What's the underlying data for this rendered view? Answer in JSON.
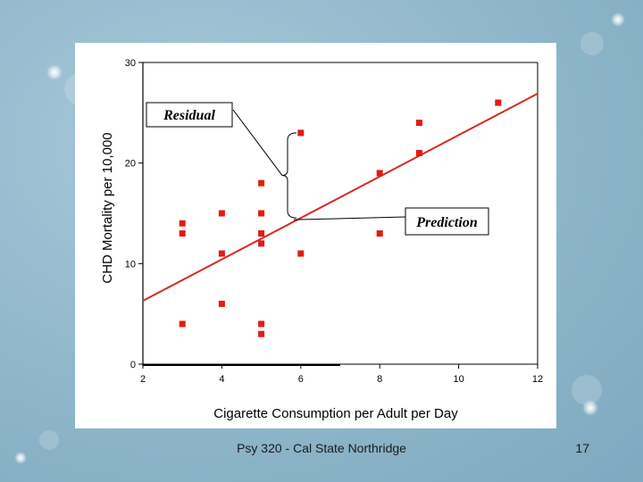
{
  "chart_data": {
    "type": "scatter",
    "title": "",
    "xlabel": "Cigarette Consumption per Adult per Day",
    "ylabel": "CHD Mortality per 10,000",
    "xlim": [
      2,
      12
    ],
    "ylim": [
      0,
      30
    ],
    "x_ticks": [
      2,
      4,
      6,
      8,
      10,
      12
    ],
    "y_ticks": [
      0,
      10,
      20,
      30
    ],
    "x_tick_labels": [
      "2",
      "4",
      "6",
      "8",
      "10",
      "12"
    ],
    "y_tick_labels": [
      "0",
      "10",
      "20",
      "30"
    ],
    "points": [
      {
        "x": 11,
        "y": 26
      },
      {
        "x": 9,
        "y": 24
      },
      {
        "x": 6,
        "y": 23
      },
      {
        "x": 9,
        "y": 21
      },
      {
        "x": 8,
        "y": 19
      },
      {
        "x": 5,
        "y": 18
      },
      {
        "x": 3,
        "y": 14
      },
      {
        "x": 4,
        "y": 15
      },
      {
        "x": 5,
        "y": 15
      },
      {
        "x": 3,
        "y": 13
      },
      {
        "x": 5,
        "y": 13
      },
      {
        "x": 8,
        "y": 13
      },
      {
        "x": 5,
        "y": 12
      },
      {
        "x": 4,
        "y": 11
      },
      {
        "x": 6,
        "y": 11
      },
      {
        "x": 4,
        "y": 6
      },
      {
        "x": 3,
        "y": 4
      },
      {
        "x": 5,
        "y": 4
      },
      {
        "x": 5,
        "y": 3
      }
    ],
    "regression_line": {
      "x": [
        2,
        12
      ],
      "y": [
        6.3,
        26.9
      ]
    },
    "annotations": [
      {
        "label": "Residual"
      },
      {
        "label": "Prediction"
      }
    ],
    "colors": {
      "points": "#e31b14",
      "line": "#d42a22",
      "axis": "#000000"
    }
  },
  "footer": {
    "text": "Psy 320 - Cal State Northridge",
    "slide_number": "17"
  }
}
